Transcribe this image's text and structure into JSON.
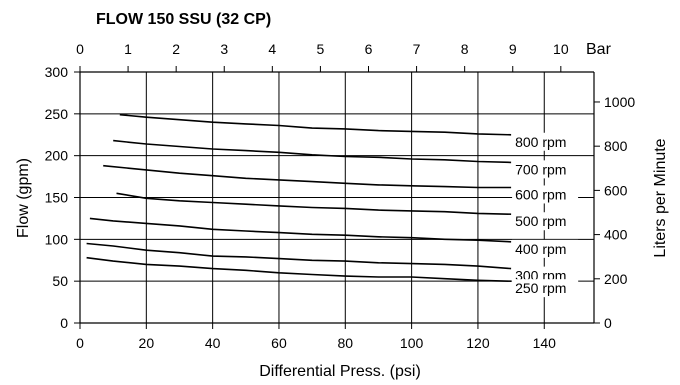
{
  "chart_data": {
    "type": "line",
    "title": "FLOW 150 SSU (32 CP)",
    "xlabel": "Differential Press. (psi)",
    "ylabel": "Flow (gpm)",
    "x2label": "Bar",
    "y2label": "Liters per Minute",
    "xlim": [
      0,
      155
    ],
    "ylim": [
      0,
      300
    ],
    "x_ticks": [
      "0",
      "20",
      "40",
      "60",
      "80",
      "100",
      "120",
      "140"
    ],
    "y_ticks": [
      "0",
      "50",
      "100",
      "150",
      "200",
      "250",
      "300"
    ],
    "top_axis": {
      "lim": [
        0,
        10.69
      ],
      "ticks": [
        "0",
        "1",
        "2",
        "3",
        "4",
        "5",
        "6",
        "7",
        "8",
        "9",
        "10"
      ]
    },
    "right_axis": {
      "lim": [
        0,
        1135.6
      ],
      "ticks": [
        "0",
        "200",
        "400",
        "600",
        "800",
        "1000"
      ]
    },
    "grid": true,
    "series": [
      {
        "name": "800 rpm",
        "x": [
          12,
          20,
          30,
          40,
          50,
          60,
          70,
          80,
          90,
          100,
          110,
          120,
          130
        ],
        "y": [
          249,
          246,
          243,
          240,
          238,
          236,
          233,
          232,
          230,
          229,
          228,
          226,
          225
        ]
      },
      {
        "name": "700 rpm",
        "x": [
          10,
          20,
          30,
          40,
          50,
          60,
          70,
          80,
          90,
          100,
          110,
          120,
          130
        ],
        "y": [
          218,
          214,
          211,
          208,
          206,
          204,
          201,
          199,
          198,
          196,
          195,
          193,
          192
        ]
      },
      {
        "name": "600 rpm",
        "x": [
          7,
          20,
          30,
          40,
          50,
          60,
          70,
          80,
          90,
          100,
          110,
          120,
          130
        ],
        "y": [
          188,
          183,
          179,
          176,
          173,
          171,
          169,
          167,
          165,
          164,
          163,
          162,
          162
        ]
      },
      {
        "name": "500 rpm",
        "x": [
          11,
          20,
          30,
          40,
          50,
          60,
          70,
          80,
          90,
          100,
          110,
          120,
          130
        ],
        "y": [
          155,
          149,
          146,
          144,
          142,
          140,
          138,
          137,
          135,
          134,
          133,
          131,
          130
        ]
      },
      {
        "name": "400 rpm",
        "x": [
          3,
          10,
          20,
          30,
          40,
          50,
          60,
          70,
          80,
          90,
          100,
          110,
          120,
          130
        ],
        "y": [
          125,
          122,
          119,
          116,
          112,
          110,
          108,
          106,
          105,
          103,
          102,
          100,
          99,
          97
        ]
      },
      {
        "name": "300 rpm",
        "x": [
          2,
          10,
          20,
          30,
          40,
          50,
          60,
          70,
          80,
          90,
          100,
          110,
          120,
          130
        ],
        "y": [
          95,
          92,
          87,
          84,
          80,
          79,
          77,
          75,
          74,
          72,
          71,
          70,
          68,
          65
        ]
      },
      {
        "name": "250 rpm",
        "x": [
          2,
          10,
          20,
          30,
          40,
          50,
          60,
          70,
          80,
          90,
          100,
          110,
          120,
          130
        ],
        "y": [
          78,
          74,
          70,
          68,
          65,
          63,
          60,
          58,
          56,
          55,
          55,
          53,
          51,
          50
        ]
      }
    ]
  }
}
